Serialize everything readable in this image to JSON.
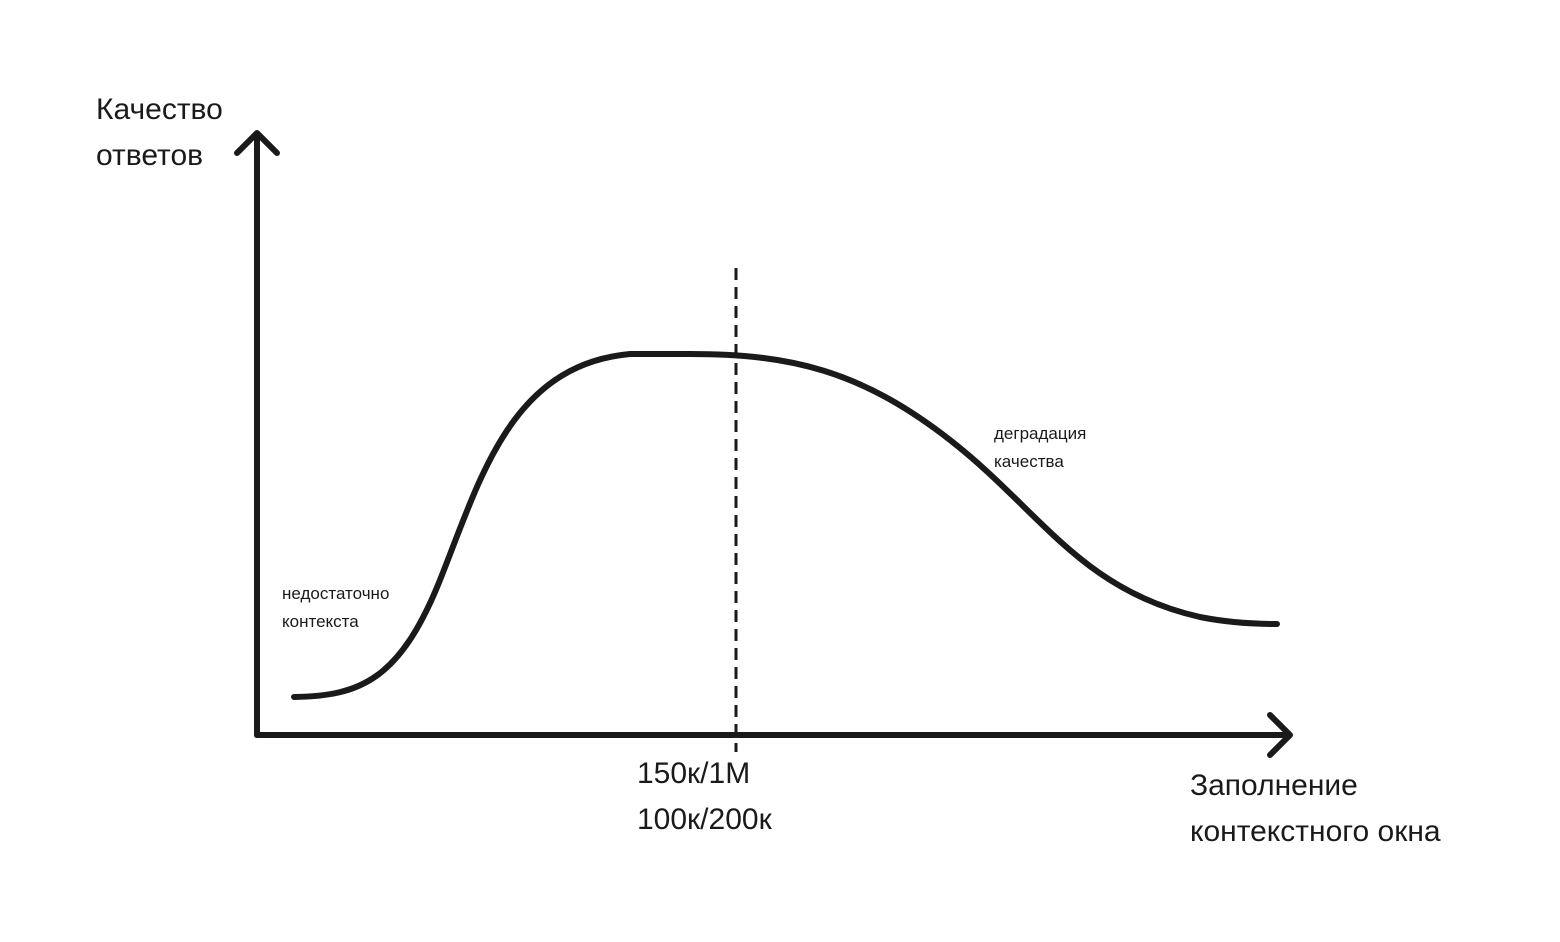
{
  "y_axis_label": {
    "line1": "Качество",
    "line2": "ответов"
  },
  "x_axis_label": {
    "line1": "Заполнение",
    "line2": "контекстного окна"
  },
  "marker_label": {
    "line1": "150к/1М",
    "line2": "100к/200к"
  },
  "annotations": {
    "insufficient_context": {
      "line1": "недостаточно",
      "line2": "контекста"
    },
    "quality_degradation": {
      "line1": "деградация",
      "line2": "качества"
    }
  },
  "colors": {
    "stroke": "#1a1a1a",
    "background": "#ffffff"
  }
}
